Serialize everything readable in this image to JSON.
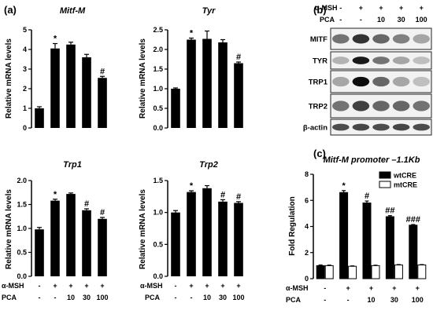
{
  "panel_labels": {
    "a": "(a)",
    "b": "(b)",
    "c": "(c)"
  },
  "y_label_mrna": "Relative mRNA levels",
  "treatment_rows": {
    "msh_label": "α-MSH",
    "pca_label": "PCA",
    "msh": [
      "-",
      "+",
      "+",
      "+",
      "+"
    ],
    "pca": [
      "-",
      "-",
      "10",
      "30",
      "100"
    ]
  },
  "western_blot": {
    "msh_label": "α-MSH",
    "pca_label": "PCA",
    "msh": [
      "-",
      "+",
      "+",
      "+",
      "+"
    ],
    "pca": [
      "-",
      "-",
      "10",
      "30",
      "100"
    ],
    "bands": [
      "MITF",
      "TYR",
      "TRP1",
      "TRP2",
      "β-actin"
    ]
  },
  "chart_data": [
    {
      "type": "bar",
      "title": "Mitf-M",
      "ylabel": "Relative mRNA levels",
      "ylim": [
        0,
        5
      ],
      "yticks": [
        "0",
        "1",
        "2",
        "3",
        "4",
        "5"
      ],
      "values": [
        1.0,
        4.05,
        4.25,
        3.6,
        2.55
      ],
      "errors": [
        0.08,
        0.25,
        0.12,
        0.15,
        0.08
      ],
      "annotations": [
        "",
        "*",
        "",
        "",
        "#"
      ]
    },
    {
      "type": "bar",
      "title": "Tyr",
      "ylabel": "Relative mRNA levels",
      "ylim": [
        0,
        2.5
      ],
      "yticks": [
        "0.0",
        "0.5",
        "1.0",
        "1.5",
        "2.0",
        "2.5"
      ],
      "values": [
        1.0,
        2.25,
        2.27,
        2.18,
        1.65
      ],
      "errors": [
        0.02,
        0.04,
        0.2,
        0.07,
        0.03
      ],
      "annotations": [
        "",
        "*",
        "",
        "",
        "#"
      ]
    },
    {
      "type": "bar",
      "title": "Trp1",
      "ylabel": "Relative mRNA levels",
      "ylim": [
        0,
        2.0
      ],
      "yticks": [
        "0.0",
        "0.5",
        "1.0",
        "1.5",
        "2.0"
      ],
      "values": [
        0.98,
        1.58,
        1.72,
        1.38,
        1.2
      ],
      "errors": [
        0.04,
        0.03,
        0.02,
        0.03,
        0.03
      ],
      "annotations": [
        "",
        "*",
        "",
        "#",
        "#"
      ]
    },
    {
      "type": "bar",
      "title": "Trp2",
      "ylabel": "Relative mRNA levels",
      "ylim": [
        0,
        1.5
      ],
      "yticks": [
        "0.0",
        "0.5",
        "1.0",
        "1.5"
      ],
      "values": [
        1.0,
        1.32,
        1.38,
        1.17,
        1.15
      ],
      "errors": [
        0.03,
        0.02,
        0.04,
        0.03,
        0.02
      ],
      "annotations": [
        "",
        "*",
        "",
        "#",
        "#"
      ]
    },
    {
      "type": "bar",
      "title": "Mitf-M promoter –1.1Kb",
      "ylabel": "Fold Regulation",
      "ylim": [
        0,
        8
      ],
      "yticks": [
        "0",
        "2",
        "4",
        "6",
        "8"
      ],
      "series": [
        {
          "name": "wtCRE",
          "color": "#000000",
          "values": [
            1.0,
            6.6,
            5.8,
            4.75,
            4.1
          ],
          "errors": [
            0.05,
            0.15,
            0.15,
            0.08,
            0.05
          ]
        },
        {
          "name": "mtCRE",
          "color": "#ffffff",
          "values": [
            1.0,
            0.95,
            1.0,
            1.05,
            1.05
          ],
          "errors": [
            0.04,
            0.03,
            0.03,
            0.03,
            0.03
          ]
        }
      ],
      "annotations": [
        "",
        "*",
        "#",
        "##",
        "###"
      ]
    }
  ]
}
